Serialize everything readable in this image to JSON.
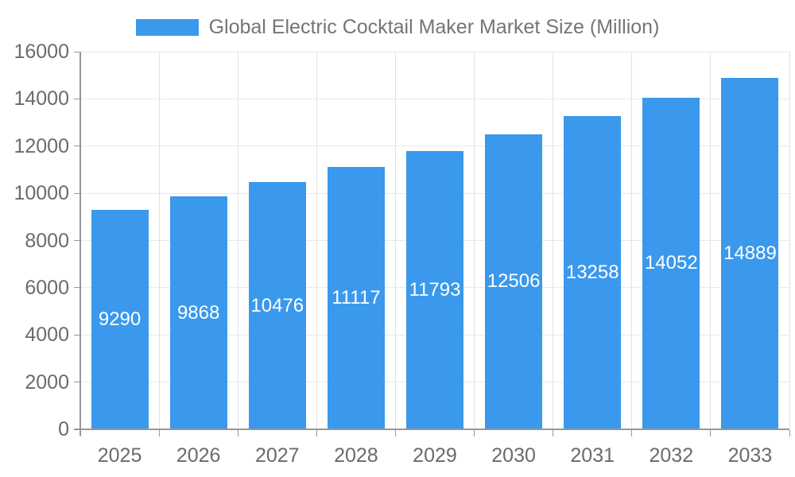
{
  "chart_data": {
    "type": "bar",
    "title": "Global Electric Cocktail Maker Market Size (Million)",
    "categories": [
      "2025",
      "2026",
      "2027",
      "2028",
      "2029",
      "2030",
      "2031",
      "2032",
      "2033"
    ],
    "values": [
      9290,
      9868,
      10476,
      11117,
      11793,
      12506,
      13258,
      14052,
      14889
    ],
    "xlabel": "",
    "ylabel": "",
    "ylim": [
      0,
      16000
    ],
    "yticks": [
      0,
      2000,
      4000,
      6000,
      8000,
      10000,
      12000,
      14000,
      16000
    ],
    "grid": true,
    "legend_position": "top",
    "value_label_position": "inside-center",
    "bar_color": "#3A99EC",
    "value_label_color": "#ffffff",
    "axis_text_color": "#6b6b6b",
    "legend_text_color": "#757575"
  }
}
